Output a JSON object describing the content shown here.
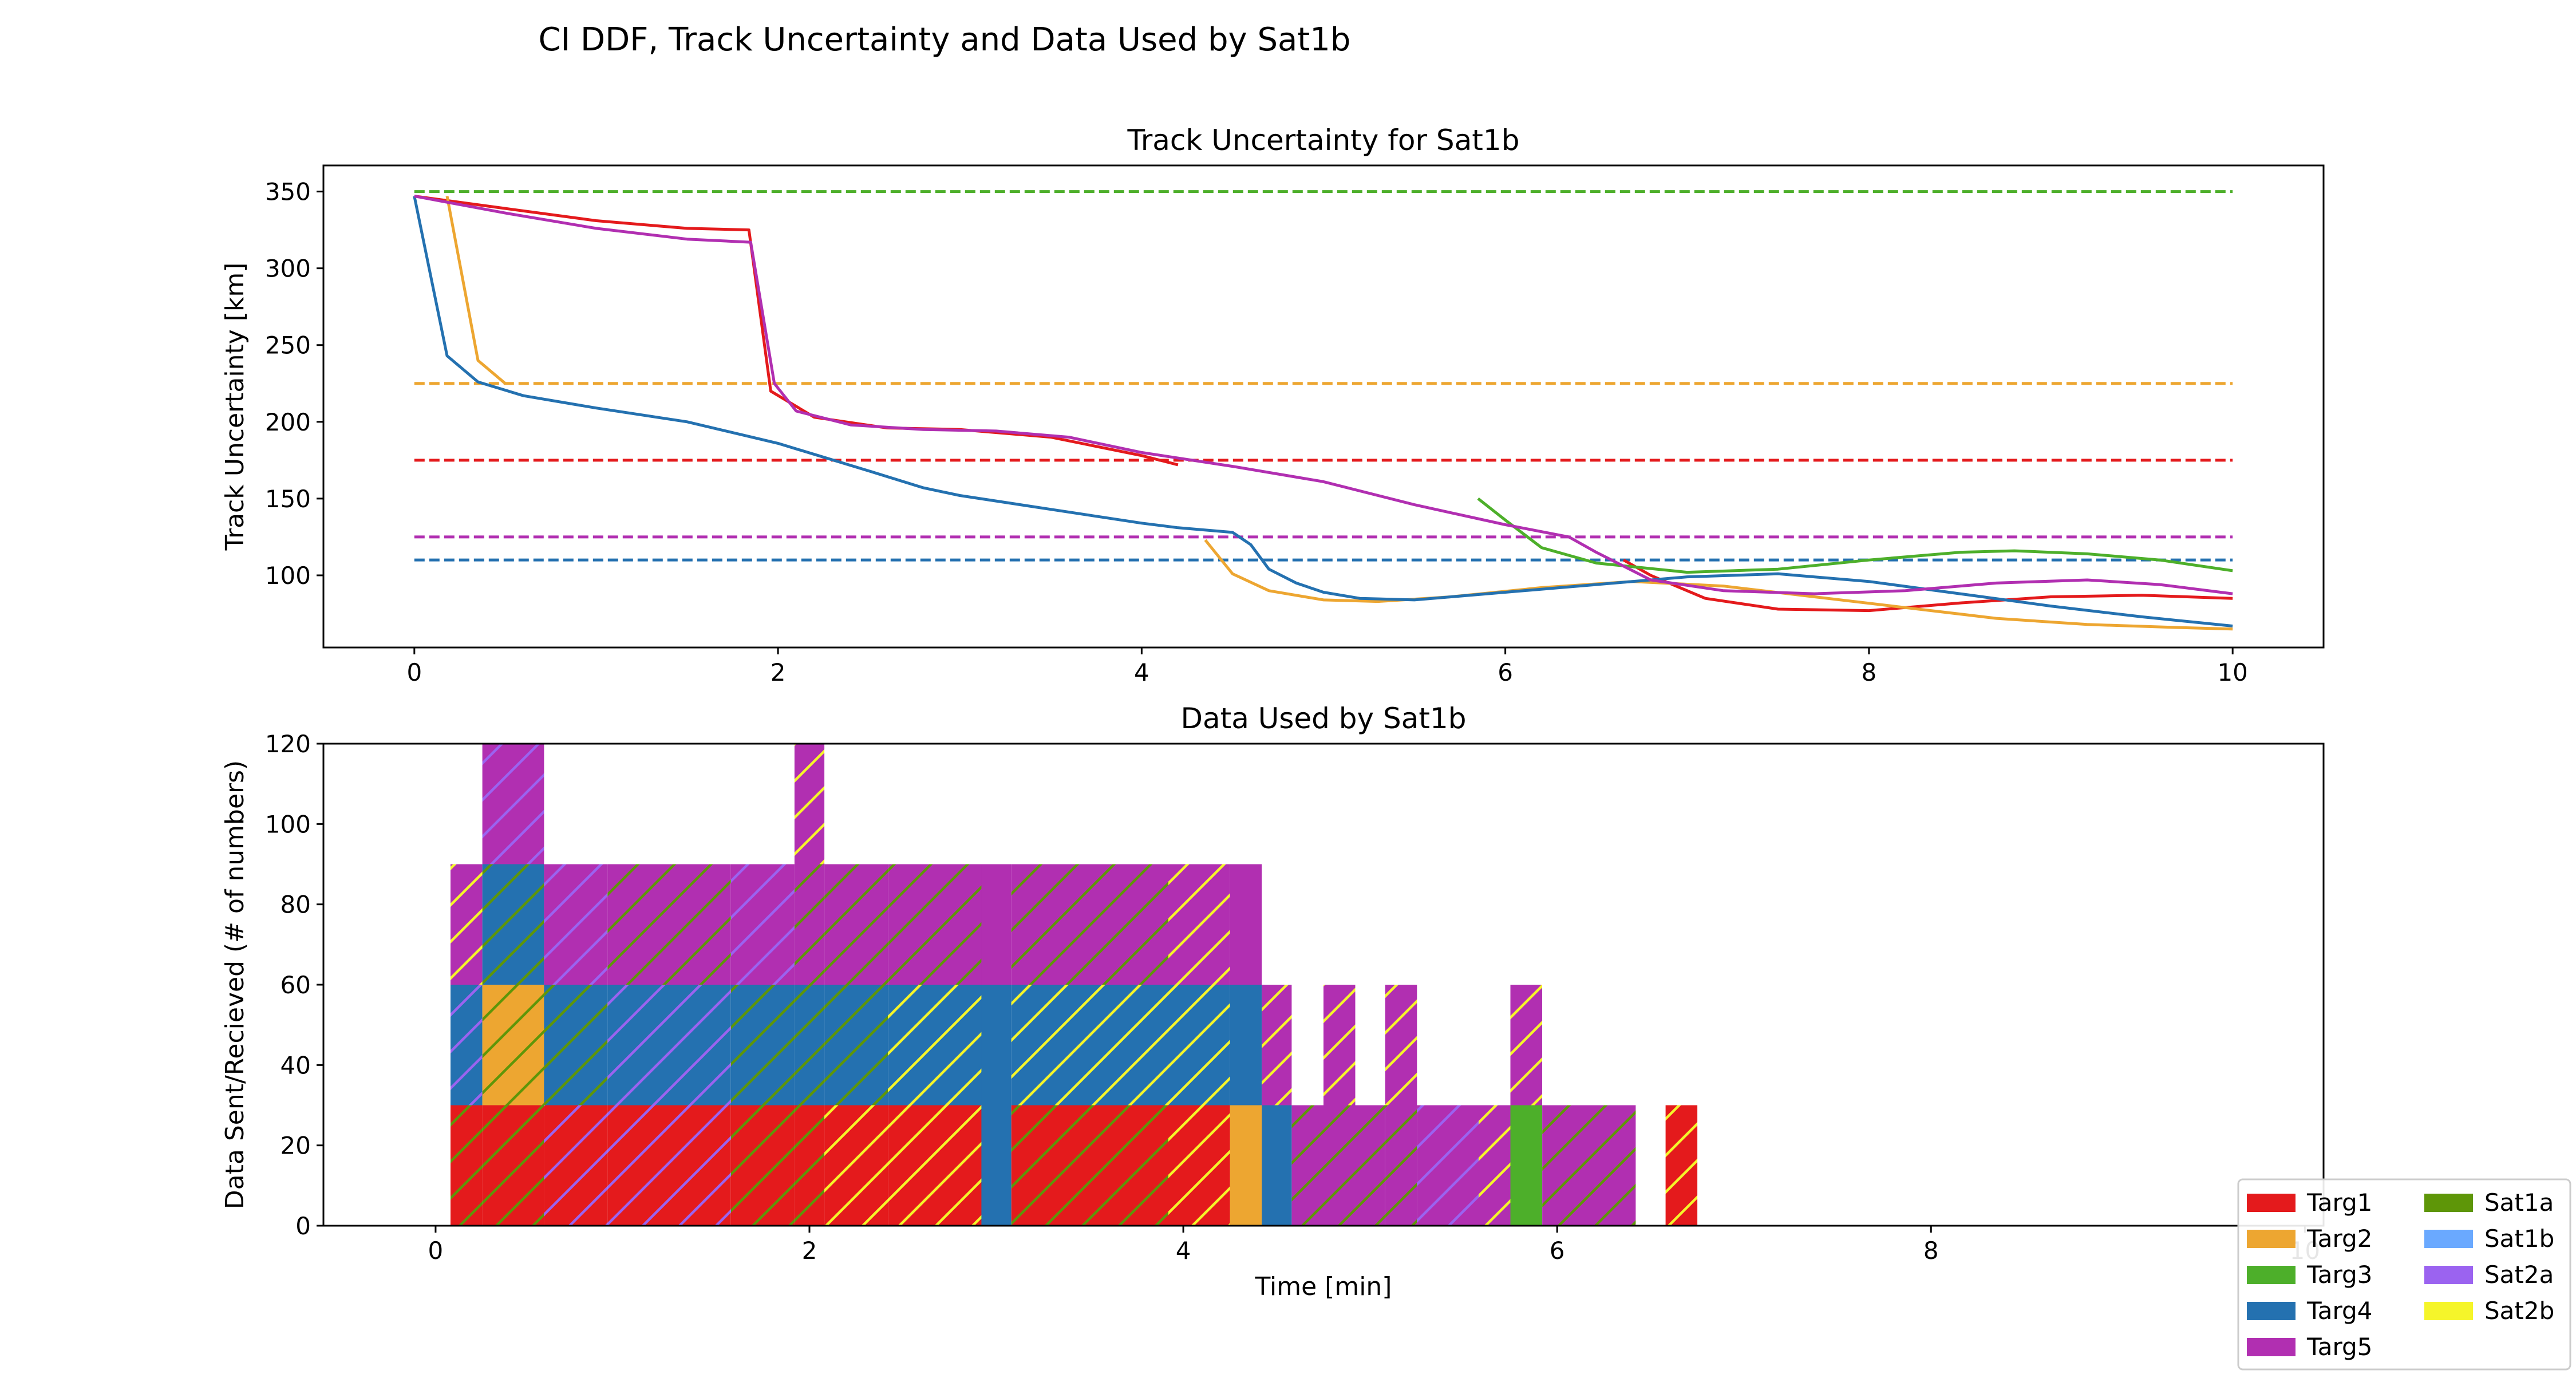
{
  "figure": {
    "title": "CI DDF, Track Uncertainty and Data Used by Sat1b"
  },
  "colors": {
    "Targ1": "#e41a1c",
    "Targ2": "#eda631",
    "Targ3": "#4daf2a",
    "Targ4": "#2471b0",
    "Targ5": "#b12fb1",
    "Sat1a": "#5e9608",
    "Sat1b": "#6aa9ff",
    "Sat2a": "#9b63f0",
    "Sat2b": "#f5f52a"
  },
  "chart_data": [
    {
      "type": "line",
      "title": "Track Uncertainty for Sat1b",
      "xlabel": "",
      "ylabel": "Track Uncertainty [km]",
      "xlim": [
        -0.5,
        10.5
      ],
      "ylim": [
        53,
        367
      ],
      "xticks": [
        0,
        2,
        4,
        6,
        8,
        10
      ],
      "yticks": [
        100,
        150,
        200,
        250,
        300,
        350
      ],
      "grid": false,
      "thresholds": [
        {
          "target": "Targ3",
          "y": 350,
          "x": [
            0,
            10
          ],
          "style": "dashed"
        },
        {
          "target": "Targ2",
          "y": 225,
          "x": [
            0,
            10
          ],
          "style": "dashed"
        },
        {
          "target": "Targ1",
          "y": 175,
          "x": [
            0,
            10
          ],
          "style": "dashed"
        },
        {
          "target": "Targ5",
          "y": 125,
          "x": [
            0,
            10
          ],
          "style": "dashed"
        },
        {
          "target": "Targ4",
          "y": 110,
          "x": [
            0,
            10
          ],
          "style": "dashed"
        }
      ],
      "series": [
        {
          "target": "Targ1",
          "segments": [
            [
              [
                0,
                347
              ],
              [
                0.5,
                339
              ],
              [
                1,
                331
              ],
              [
                1.5,
                326
              ],
              [
                1.84,
                325
              ],
              [
                1.96,
                220
              ],
              [
                2.2,
                203
              ],
              [
                2.6,
                196
              ],
              [
                3.0,
                195
              ],
              [
                3.5,
                190
              ],
              [
                4.0,
                178
              ],
              [
                4.2,
                172
              ]
            ],
            [
              [
                6.65,
                110
              ],
              [
                6.8,
                100
              ],
              [
                7.1,
                85
              ],
              [
                7.5,
                78
              ],
              [
                8,
                77
              ],
              [
                8.5,
                82
              ],
              [
                9,
                86
              ],
              [
                9.5,
                87
              ],
              [
                10,
                85
              ]
            ]
          ]
        },
        {
          "target": "Targ2",
          "segments": [
            [
              [
                0.18,
                347
              ],
              [
                0.35,
                240
              ],
              [
                0.5,
                225
              ]
            ],
            [
              [
                4.35,
                123
              ],
              [
                4.5,
                101
              ],
              [
                4.7,
                90
              ],
              [
                5.0,
                84
              ],
              [
                5.3,
                83
              ],
              [
                5.7,
                86
              ],
              [
                6.2,
                92
              ],
              [
                6.7,
                96
              ],
              [
                7.2,
                93
              ],
              [
                7.7,
                86
              ],
              [
                8.2,
                79
              ],
              [
                8.7,
                72
              ],
              [
                9.2,
                68
              ],
              [
                9.7,
                66
              ],
              [
                10,
                65
              ]
            ]
          ]
        },
        {
          "target": "Targ3",
          "segments": [
            [
              [
                5.85,
                150
              ],
              [
                6.0,
                136
              ],
              [
                6.2,
                118
              ],
              [
                6.5,
                108
              ],
              [
                7,
                102
              ],
              [
                7.5,
                104
              ],
              [
                8,
                110
              ],
              [
                8.5,
                115
              ],
              [
                8.8,
                116
              ],
              [
                9.2,
                114
              ],
              [
                9.6,
                110
              ],
              [
                10,
                103
              ]
            ]
          ]
        },
        {
          "target": "Targ4",
          "segments": [
            [
              [
                0,
                347
              ],
              [
                0.18,
                243
              ],
              [
                0.35,
                226
              ],
              [
                0.6,
                217
              ],
              [
                1.0,
                209
              ],
              [
                1.5,
                200
              ],
              [
                2.0,
                186
              ],
              [
                2.5,
                168
              ],
              [
                2.8,
                157
              ],
              [
                3.0,
                152
              ],
              [
                3.5,
                143
              ],
              [
                4.0,
                134
              ],
              [
                4.2,
                131
              ],
              [
                4.5,
                128
              ],
              [
                4.6,
                120
              ],
              [
                4.7,
                104
              ],
              [
                4.85,
                95
              ],
              [
                5.0,
                89
              ],
              [
                5.2,
                85
              ],
              [
                5.5,
                84
              ],
              [
                6,
                89
              ],
              [
                6.5,
                94
              ],
              [
                7,
                99
              ],
              [
                7.5,
                101
              ],
              [
                8,
                96
              ],
              [
                8.5,
                88
              ],
              [
                9,
                80
              ],
              [
                9.5,
                73
              ],
              [
                10,
                67
              ]
            ]
          ]
        },
        {
          "target": "Targ5",
          "segments": [
            [
              [
                0,
                347
              ],
              [
                0.5,
                336
              ],
              [
                1.0,
                326
              ],
              [
                1.5,
                319
              ],
              [
                1.85,
                317
              ],
              [
                1.98,
                225
              ],
              [
                2.1,
                207
              ],
              [
                2.4,
                198
              ],
              [
                2.8,
                195
              ],
              [
                3.2,
                194
              ],
              [
                3.6,
                190
              ],
              [
                4.0,
                180
              ],
              [
                4.5,
                171
              ],
              [
                5.0,
                161
              ],
              [
                5.5,
                146
              ],
              [
                6.0,
                133
              ],
              [
                6.35,
                125
              ],
              [
                6.5,
                115
              ],
              [
                6.8,
                97
              ],
              [
                7.2,
                90
              ],
              [
                7.7,
                88
              ],
              [
                8.2,
                90
              ],
              [
                8.7,
                95
              ],
              [
                9.2,
                97
              ],
              [
                9.6,
                94
              ],
              [
                10,
                88
              ]
            ]
          ]
        }
      ]
    },
    {
      "type": "bar",
      "stacked": true,
      "title": "Data Used by Sat1b",
      "xlabel": "Time [min]",
      "ylabel": "Data Sent/Recieved (# of numbers)",
      "xlim": [
        -0.6,
        10.1
      ],
      "ylim": [
        0,
        120
      ],
      "xticks": [
        0,
        2,
        4,
        6,
        8,
        10
      ],
      "yticks": [
        0,
        20,
        40,
        60,
        80,
        100,
        120
      ],
      "grid": false,
      "legend_placement": "bottom-right",
      "legend": [
        "Targ1",
        "Targ2",
        "Targ3",
        "Targ4",
        "Targ5",
        "Sat1a",
        "Sat1b",
        "Sat2a",
        "Sat2b"
      ],
      "bars": [
        {
          "x": [
            0.08,
            0.25
          ],
          "stack": [
            [
              "Targ1",
              "Sat1a"
            ],
            [
              "Targ4",
              "Sat2a"
            ],
            [
              "Targ5",
              "Sat2b"
            ]
          ]
        },
        {
          "x": [
            0.25,
            0.58
          ],
          "stack": [
            [
              "Targ1",
              "Sat1a"
            ],
            [
              "Targ2",
              "Sat1a"
            ],
            [
              "Targ4",
              "Sat1a"
            ],
            [
              "Targ5",
              "Sat2a"
            ]
          ]
        },
        {
          "x": [
            0.58,
            0.92
          ],
          "stack": [
            [
              "Targ1",
              "Sat2a"
            ],
            [
              "Targ4",
              "Sat1a"
            ],
            [
              "Targ5",
              "Sat2a"
            ]
          ]
        },
        {
          "x": [
            0.92,
            1.58
          ],
          "stack": [
            [
              "Targ1",
              "Sat2a"
            ],
            [
              "Targ4",
              "Sat2a"
            ],
            [
              "Targ5",
              "Sat1a"
            ]
          ]
        },
        {
          "x": [
            1.58,
            1.92
          ],
          "stack": [
            [
              "Targ1",
              "Sat1a"
            ],
            [
              "Targ4",
              "Sat1a"
            ],
            [
              "Targ5",
              "Sat2a"
            ]
          ]
        },
        {
          "x": [
            1.92,
            2.08
          ],
          "stack": [
            [
              "Targ1",
              "Sat1a"
            ],
            [
              "Targ4",
              "Sat1a"
            ],
            [
              "Targ5",
              "Sat1a"
            ],
            [
              "Targ5",
              "Sat2b"
            ]
          ]
        },
        {
          "x": [
            2.08,
            2.42
          ],
          "stack": [
            [
              "Targ1",
              "Sat2b"
            ],
            [
              "Targ4",
              "Sat1a"
            ],
            [
              "Targ5",
              "Sat1a"
            ]
          ]
        },
        {
          "x": [
            2.42,
            2.92
          ],
          "stack": [
            [
              "Targ1",
              "Sat2b"
            ],
            [
              "Targ4",
              "Sat2b"
            ],
            [
              "Targ5",
              "Sat1a"
            ]
          ]
        },
        {
          "x": [
            2.92,
            3.08
          ],
          "stack": [
            [
              "Targ4",
              "none"
            ],
            [
              "Targ4",
              "none"
            ],
            [
              "Targ5",
              "none"
            ]
          ]
        },
        {
          "x": [
            3.08,
            3.92
          ],
          "stack": [
            [
              "Targ1",
              "Sat1a"
            ],
            [
              "Targ4",
              "Sat2b"
            ],
            [
              "Targ5",
              "Sat1a"
            ]
          ]
        },
        {
          "x": [
            3.92,
            4.25
          ],
          "stack": [
            [
              "Targ1",
              "Sat2b"
            ],
            [
              "Targ4",
              "Sat2b"
            ],
            [
              "Targ5",
              "Sat2b"
            ]
          ]
        },
        {
          "x": [
            4.25,
            4.42
          ],
          "stack": [
            [
              "Targ2",
              "none"
            ],
            [
              "Targ4",
              "none"
            ],
            [
              "Targ5",
              "none"
            ]
          ]
        },
        {
          "x": [
            4.42,
            4.58
          ],
          "stack": [
            [
              "Targ4",
              "none"
            ],
            [
              "Targ5",
              "Sat2b"
            ]
          ]
        },
        {
          "x": [
            4.58,
            4.75
          ],
          "stack": [
            [
              "Targ5",
              "Sat1a"
            ]
          ]
        },
        {
          "x": [
            4.75,
            4.92
          ],
          "stack": [
            [
              "Targ5",
              "Sat1a"
            ],
            [
              "Targ5",
              "Sat2b"
            ]
          ]
        },
        {
          "x": [
            4.92,
            5.08
          ],
          "stack": [
            [
              "Targ5",
              "Sat1a"
            ]
          ]
        },
        {
          "x": [
            5.08,
            5.25
          ],
          "stack": [
            [
              "Targ5",
              "Sat1a"
            ],
            [
              "Targ5",
              "Sat2b"
            ]
          ]
        },
        {
          "x": [
            5.25,
            5.58
          ],
          "stack": [
            [
              "Targ5",
              "Sat2a"
            ]
          ]
        },
        {
          "x": [
            5.58,
            5.75
          ],
          "stack": [
            [
              "Targ5",
              "Sat2b"
            ]
          ]
        },
        {
          "x": [
            5.75,
            5.92
          ],
          "stack": [
            [
              "Targ3",
              "none"
            ],
            [
              "Targ5",
              "Sat2b"
            ]
          ]
        },
        {
          "x": [
            5.92,
            6.42
          ],
          "stack": [
            [
              "Targ5",
              "Sat1a"
            ]
          ]
        },
        {
          "x": [
            6.58,
            6.75
          ],
          "stack": [
            [
              "Targ1",
              "Sat2b"
            ]
          ]
        }
      ]
    }
  ]
}
